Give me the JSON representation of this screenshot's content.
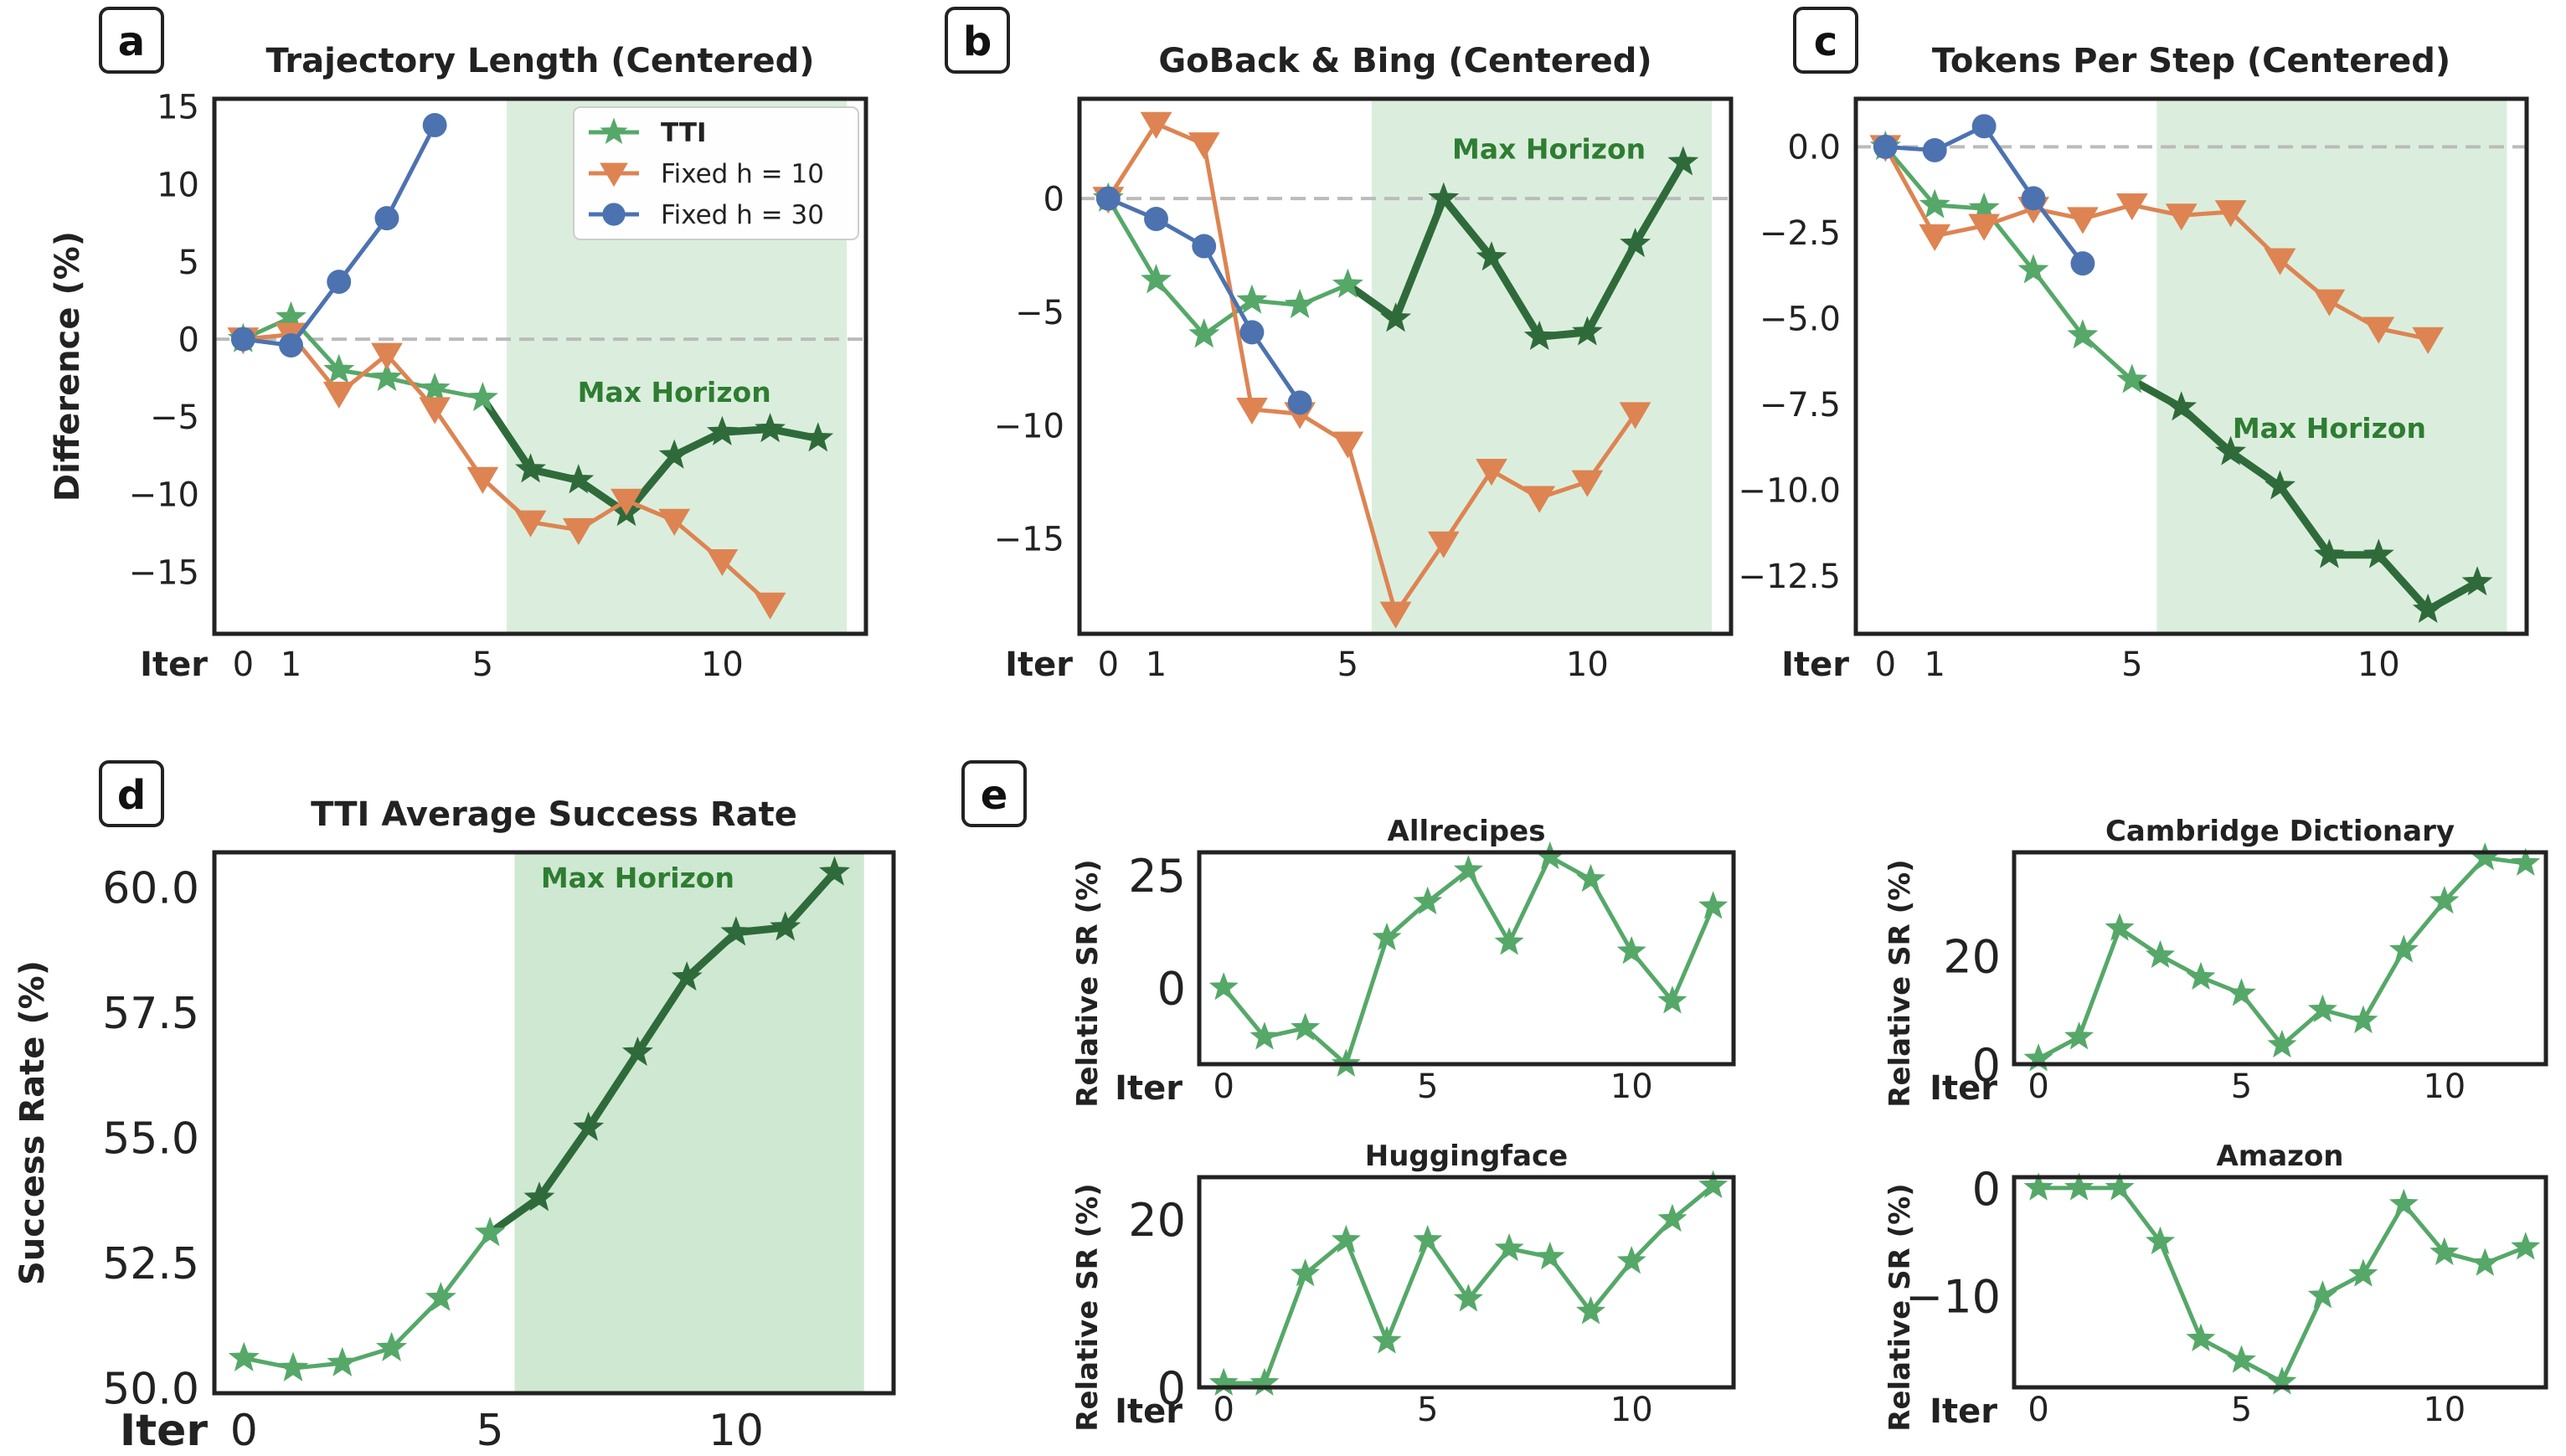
{
  "colors": {
    "tti": "#55a868",
    "tti_dark": "#2f6b3a",
    "fixed10": "#dd8452",
    "fixed30": "#4c72b0",
    "horizon_shade": "#cfe8d2",
    "zero_line": "#bbbbbb"
  },
  "chart_data": [
    {
      "id": "a",
      "letter": "a",
      "type": "line",
      "title": "Trajectory Length (Centered)",
      "ylabel": "Difference (%)",
      "xlabel": "Iter",
      "xlim": [
        -0.6,
        13.0
      ],
      "ylim": [
        -19,
        15.5
      ],
      "xticks": [
        0,
        1,
        5,
        10
      ],
      "yticks": [
        15,
        10,
        5,
        0,
        -5,
        -10,
        -15
      ],
      "ytick_labels": [
        "15",
        "10",
        "5",
        "0",
        "−5",
        "−10",
        "−15"
      ],
      "zero_line": true,
      "shade": [
        5.5,
        12.6
      ],
      "shade_label": "Max Horizon",
      "shade_label_pos": [
        9.0,
        -3.4
      ],
      "legend": {
        "position": "top-right",
        "entries": [
          {
            "label": "TTI",
            "series": "tti"
          },
          {
            "label": "Fixed h = 10",
            "series": "fixed10"
          },
          {
            "label": "Fixed h = 30",
            "series": "fixed30"
          }
        ]
      },
      "series": [
        {
          "name": "TTI",
          "key": "tti",
          "marker": "star",
          "x": [
            0,
            1,
            2,
            3,
            4,
            5,
            6,
            7,
            8,
            9,
            10,
            11,
            12
          ],
          "y": [
            0,
            1.4,
            -2,
            -2.5,
            -3.2,
            -3.8,
            -8.4,
            -9.1,
            -11.2,
            -7.5,
            -6,
            -5.8,
            -6.4
          ],
          "dark_from": 6
        },
        {
          "name": "Fixed h = 10",
          "key": "fixed10",
          "marker": "tri-down",
          "x": [
            0,
            1,
            2,
            3,
            4,
            5,
            6,
            7,
            8,
            9,
            10,
            11
          ],
          "y": [
            0,
            0.3,
            -3.5,
            -1,
            -4.5,
            -9,
            -11.8,
            -12.3,
            -10.4,
            -11.7,
            -14.3,
            -17.1
          ]
        },
        {
          "name": "Fixed h = 30",
          "key": "fixed30",
          "marker": "circle",
          "x": [
            0,
            1,
            2,
            3,
            4
          ],
          "y": [
            0,
            -0.4,
            3.7,
            7.8,
            13.8
          ]
        }
      ]
    },
    {
      "id": "b",
      "letter": "b",
      "type": "line",
      "title": "GoBack & Bing (Centered)",
      "ylabel": "",
      "xlabel": "Iter",
      "xlim": [
        -0.6,
        13.0
      ],
      "ylim": [
        -19.2,
        4.4
      ],
      "xticks": [
        0,
        1,
        5,
        10
      ],
      "yticks": [
        0,
        -5,
        -10,
        -15
      ],
      "ytick_labels": [
        "0",
        "−5",
        "−10",
        "−15"
      ],
      "zero_line": true,
      "shade": [
        5.5,
        12.6
      ],
      "shade_label": "Max Horizon",
      "shade_label_pos": [
        9.2,
        2.2
      ],
      "series": [
        {
          "name": "TTI",
          "key": "tti",
          "marker": "star",
          "x": [
            0,
            1,
            2,
            3,
            4,
            5,
            6,
            7,
            8,
            9,
            10,
            11,
            12
          ],
          "y": [
            0,
            -3.6,
            -6,
            -4.5,
            -4.7,
            -3.8,
            -5.3,
            0,
            -2.6,
            -6.1,
            -5.9,
            -2,
            1.6
          ],
          "dark_from": 6
        },
        {
          "name": "Fixed h = 10",
          "key": "fixed10",
          "marker": "tri-down",
          "x": [
            0,
            1,
            2,
            3,
            4,
            5,
            6,
            7,
            8,
            9,
            10,
            11
          ],
          "y": [
            0,
            3.3,
            2.4,
            -9.3,
            -9.5,
            -10.8,
            -18.3,
            -15.2,
            -12,
            -13.2,
            -12.5,
            -9.5
          ]
        },
        {
          "name": "Fixed h = 30",
          "key": "fixed30",
          "marker": "circle",
          "x": [
            0,
            1,
            2,
            3,
            4
          ],
          "y": [
            0,
            -0.9,
            -2.1,
            -5.9,
            -9
          ]
        }
      ]
    },
    {
      "id": "c",
      "letter": "c",
      "type": "line",
      "title": "Tokens Per Step (Centered)",
      "ylabel": "",
      "xlabel": "Iter",
      "xlim": [
        -0.6,
        13.0
      ],
      "ylim": [
        -14.2,
        1.4
      ],
      "xticks": [
        0,
        1,
        5,
        10
      ],
      "yticks": [
        0,
        -2.5,
        -5,
        -7.5,
        -10,
        -12.5
      ],
      "ytick_labels": [
        "0.0",
        "−2.5",
        "−5.0",
        "−7.5",
        "−10.0",
        "−12.5"
      ],
      "zero_line": true,
      "shade": [
        5.5,
        12.6
      ],
      "shade_label": "Max Horizon",
      "shade_label_pos": [
        9.0,
        -8.2
      ],
      "series": [
        {
          "name": "TTI",
          "key": "tti",
          "marker": "star",
          "x": [
            0,
            1,
            2,
            3,
            4,
            5,
            6,
            7,
            8,
            9,
            10,
            11,
            12
          ],
          "y": [
            0,
            -1.7,
            -1.8,
            -3.6,
            -5.5,
            -6.8,
            -7.6,
            -8.9,
            -9.9,
            -11.9,
            -11.9,
            -13.5,
            -12.7
          ],
          "dark_from": 6
        },
        {
          "name": "Fixed h = 10",
          "key": "fixed10",
          "marker": "tri-down",
          "x": [
            0,
            1,
            2,
            3,
            4,
            5,
            6,
            7,
            8,
            9,
            10,
            11
          ],
          "y": [
            0,
            -2.6,
            -2.3,
            -1.8,
            -2.1,
            -1.7,
            -2,
            -1.9,
            -3.3,
            -4.5,
            -5.3,
            -5.6
          ]
        },
        {
          "name": "Fixed h = 30",
          "key": "fixed30",
          "marker": "circle",
          "x": [
            0,
            1,
            2,
            3,
            4
          ],
          "y": [
            0,
            -0.1,
            0.6,
            -1.5,
            -3.4
          ]
        }
      ]
    },
    {
      "id": "d",
      "letter": "d",
      "type": "line",
      "title": "TTI Average Success Rate",
      "ylabel": "Success Rate (%)",
      "xlabel": "Iter",
      "xlim": [
        -0.6,
        13.2
      ],
      "ylim": [
        49.9,
        60.7
      ],
      "xticks": [
        0,
        5,
        10
      ],
      "yticks": [
        60,
        57.5,
        55,
        52.5,
        50
      ],
      "ytick_labels": [
        "60.0",
        "57.5",
        "55.0",
        "52.5",
        "50.0"
      ],
      "zero_line": false,
      "shade": [
        5.5,
        12.6
      ],
      "shade_label": "Max Horizon",
      "shade_label_pos": [
        8.0,
        60.2
      ],
      "series": [
        {
          "name": "TTI",
          "key": "tti",
          "marker": "star",
          "x": [
            0,
            1,
            2,
            3,
            4,
            5,
            6,
            7,
            8,
            9,
            10,
            11,
            12
          ],
          "y": [
            50.6,
            50.4,
            50.5,
            50.8,
            51.8,
            53.1,
            53.8,
            55.2,
            56.7,
            58.2,
            59.1,
            59.2,
            60.3
          ],
          "dark_from": 6
        }
      ]
    }
  ],
  "sub_charts": {
    "letter": "e",
    "panels": [
      {
        "id": "e1",
        "title": "Allrecipes",
        "type": "line",
        "ylabel": "Relative SR (%)",
        "xlabel": "Iter",
        "xlim": [
          -0.6,
          12.5
        ],
        "ylim": [
          -17,
          30
        ],
        "xticks": [
          0,
          5,
          10
        ],
        "yticks": [
          25,
          0
        ],
        "ytick_labels": [
          "25",
          "0"
        ],
        "series": [
          {
            "name": "",
            "key": "tti",
            "marker": "star",
            "x": [
              0,
              1,
              2,
              3,
              4,
              5,
              6,
              7,
              8,
              9,
              10,
              11,
              12
            ],
            "y": [
              0,
              -11,
              -9,
              -17,
              11,
              19,
              26,
              10,
              29,
              24,
              8,
              -3,
              18
            ]
          }
        ]
      },
      {
        "id": "e2",
        "title": "Cambridge Dictionary",
        "type": "line",
        "ylabel": "Relative SR (%)",
        "xlabel": "Iter",
        "xlim": [
          -0.6,
          12.5
        ],
        "ylim": [
          0,
          39
        ],
        "xticks": [
          0,
          5,
          10
        ],
        "yticks": [
          20,
          0
        ],
        "ytick_labels": [
          "20",
          "0"
        ],
        "series": [
          {
            "name": "",
            "key": "tti",
            "marker": "star",
            "x": [
              0,
              1,
              2,
              3,
              4,
              5,
              6,
              7,
              8,
              9,
              10,
              11,
              12
            ],
            "y": [
              1,
              5,
              25,
              20,
              16,
              13,
              3.5,
              10,
              8,
              21,
              30,
              38,
              37
            ]
          }
        ]
      },
      {
        "id": "e3",
        "title": "Huggingface",
        "type": "line",
        "ylabel": "Relative SR (%)",
        "xlabel": "Iter",
        "xlim": [
          -0.6,
          12.5
        ],
        "ylim": [
          0,
          25
        ],
        "xticks": [
          0,
          5,
          10
        ],
        "yticks": [
          20,
          0
        ],
        "ytick_labels": [
          "20",
          "0"
        ],
        "series": [
          {
            "name": "",
            "key": "tti",
            "marker": "star",
            "x": [
              0,
              1,
              2,
              3,
              4,
              5,
              6,
              7,
              8,
              9,
              10,
              11,
              12
            ],
            "y": [
              0.5,
              0.5,
              13.5,
              17.5,
              5.5,
              17.5,
              10.5,
              16.5,
              15.5,
              9,
              15,
              20,
              24
            ]
          }
        ]
      },
      {
        "id": "e4",
        "title": "Amazon",
        "type": "line",
        "ylabel": "Relative SR (%)",
        "xlabel": "Iter",
        "xlim": [
          -0.6,
          12.5
        ],
        "ylim": [
          -18.5,
          1
        ],
        "xticks": [
          0,
          5,
          10
        ],
        "yticks": [
          0,
          -10
        ],
        "ytick_labels": [
          "0",
          "−10"
        ],
        "series": [
          {
            "name": "",
            "key": "tti",
            "marker": "star",
            "x": [
              0,
              1,
              2,
              3,
              4,
              5,
              6,
              7,
              8,
              9,
              10,
              11,
              12
            ],
            "y": [
              0,
              0,
              0,
              -5,
              -14,
              -16,
              -18,
              -10,
              -8,
              -1.5,
              -6,
              -7,
              -5.5
            ]
          }
        ]
      }
    ]
  }
}
